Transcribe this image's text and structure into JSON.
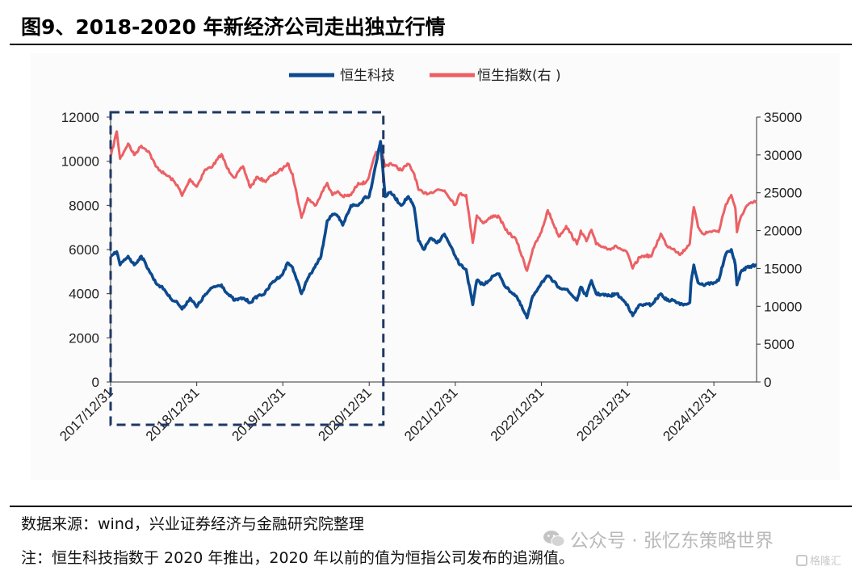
{
  "figure": {
    "title": "图9、2018-2020 年新经济公司走出独立行情",
    "source": "数据来源：wind，兴业证券经济与金融研究院整理",
    "note": "注：恒生科技指数于 2020 年推出，2020 年以前的值为恒指公司发布的追溯值。",
    "watermark": "公众号 · 张忆东策略世界",
    "logo_text": "格隆汇"
  },
  "chart_data": {
    "type": "line",
    "legend_position": "top-center",
    "grid": false,
    "x_axis": {
      "range": [
        "2017-12-31",
        "2025-06-30"
      ],
      "tick_labels": [
        "2017/12/31",
        "2018/12/31",
        "2019/12/31",
        "2020/12/31",
        "2021/12/31",
        "2022/12/31",
        "2023/12/31",
        "2024/12/31"
      ]
    },
    "y_left": {
      "ylim": [
        0,
        12000
      ],
      "ticks": [
        0,
        2000,
        4000,
        6000,
        8000,
        10000,
        12000
      ]
    },
    "y_right": {
      "ylim": [
        0,
        35000
      ],
      "ticks": [
        0,
        5000,
        10000,
        15000,
        20000,
        25000,
        30000,
        35000
      ]
    },
    "highlight_box": {
      "from": "2017-12-31",
      "to": "2021-03-01",
      "style": "dashed",
      "color": "#1f3864"
    },
    "series": [
      {
        "name": "恒生科技",
        "axis": "left",
        "color": "#0d4a8f",
        "points": [
          [
            "2018-01-02",
            5700
          ],
          [
            "2018-01-26",
            5900
          ],
          [
            "2018-02-09",
            5300
          ],
          [
            "2018-03-15",
            5700
          ],
          [
            "2018-04-10",
            5300
          ],
          [
            "2018-05-10",
            5700
          ],
          [
            "2018-06-10",
            5100
          ],
          [
            "2018-07-10",
            4500
          ],
          [
            "2018-08-15",
            4200
          ],
          [
            "2018-09-10",
            3800
          ],
          [
            "2018-10-10",
            3600
          ],
          [
            "2018-10-30",
            3300
          ],
          [
            "2018-12-03",
            3800
          ],
          [
            "2018-12-31",
            3400
          ],
          [
            "2019-02-01",
            3900
          ],
          [
            "2019-03-10",
            4300
          ],
          [
            "2019-04-15",
            4400
          ],
          [
            "2019-05-10",
            4000
          ],
          [
            "2019-06-10",
            3700
          ],
          [
            "2019-07-15",
            3800
          ],
          [
            "2019-08-15",
            3600
          ],
          [
            "2019-09-15",
            3900
          ],
          [
            "2019-10-15",
            4000
          ],
          [
            "2019-11-15",
            4500
          ],
          [
            "2019-12-31",
            4900
          ],
          [
            "2020-01-20",
            5400
          ],
          [
            "2020-02-10",
            5200
          ],
          [
            "2020-03-19",
            4000
          ],
          [
            "2020-04-15",
            4700
          ],
          [
            "2020-05-15",
            5200
          ],
          [
            "2020-06-10",
            5700
          ],
          [
            "2020-07-06",
            7300
          ],
          [
            "2020-07-28",
            7600
          ],
          [
            "2020-08-20",
            7500
          ],
          [
            "2020-09-10",
            7100
          ],
          [
            "2020-10-15",
            8000
          ],
          [
            "2020-11-15",
            8000
          ],
          [
            "2020-12-15",
            8400
          ],
          [
            "2020-12-31",
            8400
          ],
          [
            "2021-01-25",
            9700
          ],
          [
            "2021-02-17",
            10900
          ],
          [
            "2021-03-09",
            8400
          ],
          [
            "2021-04-01",
            8600
          ],
          [
            "2021-05-15",
            8000
          ],
          [
            "2021-06-15",
            8400
          ],
          [
            "2021-07-10",
            7900
          ],
          [
            "2021-07-28",
            6400
          ],
          [
            "2021-08-20",
            6000
          ],
          [
            "2021-09-15",
            6500
          ],
          [
            "2021-10-15",
            6300
          ],
          [
            "2021-11-15",
            6700
          ],
          [
            "2021-12-31",
            5700
          ],
          [
            "2022-01-20",
            5300
          ],
          [
            "2022-02-15",
            5100
          ],
          [
            "2022-03-15",
            3500
          ],
          [
            "2022-04-01",
            4600
          ],
          [
            "2022-05-01",
            4400
          ],
          [
            "2022-06-10",
            4800
          ],
          [
            "2022-07-05",
            4900
          ],
          [
            "2022-08-01",
            4300
          ],
          [
            "2022-09-15",
            3900
          ],
          [
            "2022-10-31",
            2900
          ],
          [
            "2022-11-25",
            3900
          ],
          [
            "2022-12-31",
            4500
          ],
          [
            "2023-01-27",
            4800
          ],
          [
            "2023-03-15",
            4300
          ],
          [
            "2023-04-15",
            4200
          ],
          [
            "2023-05-31",
            3700
          ],
          [
            "2023-06-16",
            4300
          ],
          [
            "2023-07-10",
            3900
          ],
          [
            "2023-07-31",
            4600
          ],
          [
            "2023-08-20",
            4000
          ],
          [
            "2023-10-15",
            3900
          ],
          [
            "2023-11-15",
            4000
          ],
          [
            "2023-12-31",
            3500
          ],
          [
            "2024-01-22",
            3000
          ],
          [
            "2024-02-20",
            3500
          ],
          [
            "2024-03-15",
            3500
          ],
          [
            "2024-04-10",
            3500
          ],
          [
            "2024-05-20",
            4000
          ],
          [
            "2024-06-15",
            3700
          ],
          [
            "2024-07-15",
            3700
          ],
          [
            "2024-08-10",
            3500
          ],
          [
            "2024-09-20",
            3600
          ],
          [
            "2024-09-25",
            4500
          ],
          [
            "2024-10-07",
            5300
          ],
          [
            "2024-10-25",
            4500
          ],
          [
            "2024-11-15",
            4400
          ],
          [
            "2024-12-31",
            4500
          ],
          [
            "2025-01-20",
            4600
          ],
          [
            "2025-02-20",
            5800
          ],
          [
            "2025-03-15",
            6000
          ],
          [
            "2025-04-01",
            5300
          ],
          [
            "2025-04-08",
            4400
          ],
          [
            "2025-04-25",
            5000
          ],
          [
            "2025-05-20",
            5200
          ],
          [
            "2025-06-30",
            5300
          ]
        ]
      },
      {
        "name": "恒生指数(右 )",
        "axis": "right",
        "color": "#ec6064",
        "points": [
          [
            "2018-01-02",
            30000
          ],
          [
            "2018-01-26",
            33100
          ],
          [
            "2018-02-09",
            29500
          ],
          [
            "2018-03-15",
            31500
          ],
          [
            "2018-04-10",
            30000
          ],
          [
            "2018-05-10",
            31200
          ],
          [
            "2018-06-10",
            30500
          ],
          [
            "2018-07-10",
            28500
          ],
          [
            "2018-08-15",
            27500
          ],
          [
            "2018-09-10",
            27000
          ],
          [
            "2018-10-10",
            26000
          ],
          [
            "2018-10-30",
            24600
          ],
          [
            "2018-12-03",
            26800
          ],
          [
            "2018-12-31",
            25800
          ],
          [
            "2019-02-01",
            27900
          ],
          [
            "2019-03-10",
            28600
          ],
          [
            "2019-04-15",
            30100
          ],
          [
            "2019-05-10",
            28200
          ],
          [
            "2019-06-10",
            27000
          ],
          [
            "2019-07-15",
            28500
          ],
          [
            "2019-08-15",
            25700
          ],
          [
            "2019-09-15",
            27100
          ],
          [
            "2019-10-15",
            26500
          ],
          [
            "2019-11-15",
            27300
          ],
          [
            "2019-12-31",
            28200
          ],
          [
            "2020-01-20",
            28900
          ],
          [
            "2020-02-10",
            27500
          ],
          [
            "2020-03-19",
            21700
          ],
          [
            "2020-04-15",
            24300
          ],
          [
            "2020-05-15",
            23300
          ],
          [
            "2020-06-10",
            24800
          ],
          [
            "2020-07-06",
            26300
          ],
          [
            "2020-07-28",
            24700
          ],
          [
            "2020-08-20",
            25200
          ],
          [
            "2020-09-10",
            24500
          ],
          [
            "2020-10-15",
            24700
          ],
          [
            "2020-11-15",
            26300
          ],
          [
            "2020-12-15",
            26300
          ],
          [
            "2020-12-31",
            27200
          ],
          [
            "2021-01-25",
            30000
          ],
          [
            "2021-02-17",
            31000
          ],
          [
            "2021-03-09",
            28500
          ],
          [
            "2021-04-01",
            28900
          ],
          [
            "2021-05-15",
            28000
          ],
          [
            "2021-06-15",
            28800
          ],
          [
            "2021-07-10",
            27500
          ],
          [
            "2021-07-28",
            25400
          ],
          [
            "2021-08-20",
            24900
          ],
          [
            "2021-09-15",
            25000
          ],
          [
            "2021-10-15",
            25400
          ],
          [
            "2021-11-15",
            25300
          ],
          [
            "2021-12-31",
            23400
          ],
          [
            "2022-01-20",
            24900
          ],
          [
            "2022-02-15",
            24700
          ],
          [
            "2022-03-15",
            18400
          ],
          [
            "2022-04-01",
            22000
          ],
          [
            "2022-05-01",
            21000
          ],
          [
            "2022-06-10",
            22000
          ],
          [
            "2022-07-05",
            21800
          ],
          [
            "2022-08-01",
            20100
          ],
          [
            "2022-09-15",
            18800
          ],
          [
            "2022-10-31",
            14700
          ],
          [
            "2022-11-25",
            17600
          ],
          [
            "2022-12-31",
            19800
          ],
          [
            "2023-01-27",
            22700
          ],
          [
            "2023-03-15",
            19200
          ],
          [
            "2023-04-15",
            20600
          ],
          [
            "2023-05-31",
            18200
          ],
          [
            "2023-06-16",
            20000
          ],
          [
            "2023-07-10",
            18600
          ],
          [
            "2023-07-31",
            20100
          ],
          [
            "2023-08-20",
            18200
          ],
          [
            "2023-10-15",
            17600
          ],
          [
            "2023-11-15",
            17900
          ],
          [
            "2023-12-31",
            17000
          ],
          [
            "2024-01-22",
            15000
          ],
          [
            "2024-02-20",
            16500
          ],
          [
            "2024-03-15",
            16700
          ],
          [
            "2024-04-10",
            16600
          ],
          [
            "2024-05-20",
            19600
          ],
          [
            "2024-06-15",
            18000
          ],
          [
            "2024-07-15",
            17600
          ],
          [
            "2024-08-10",
            16800
          ],
          [
            "2024-09-20",
            18300
          ],
          [
            "2024-09-25",
            20000
          ],
          [
            "2024-10-07",
            23100
          ],
          [
            "2024-10-25",
            20500
          ],
          [
            "2024-11-15",
            19600
          ],
          [
            "2024-12-31",
            20000
          ],
          [
            "2025-01-20",
            19800
          ],
          [
            "2025-02-20",
            23500
          ],
          [
            "2025-03-15",
            24700
          ],
          [
            "2025-04-01",
            23000
          ],
          [
            "2025-04-08",
            19800
          ],
          [
            "2025-04-25",
            21900
          ],
          [
            "2025-05-20",
            23300
          ],
          [
            "2025-06-30",
            23900
          ]
        ]
      }
    ]
  }
}
